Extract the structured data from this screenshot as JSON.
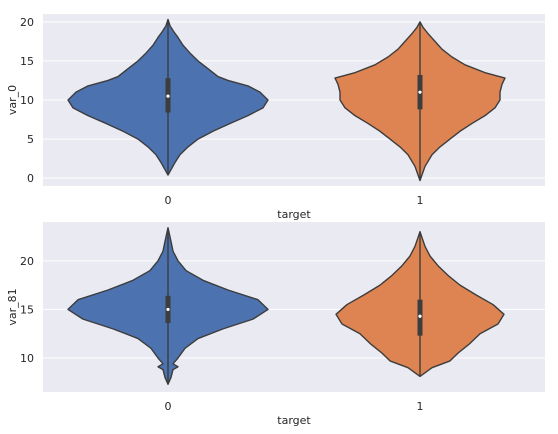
{
  "chart_data": [
    {
      "type": "violin",
      "xlabel": "target",
      "ylabel": "var_0",
      "categories": [
        "0",
        "1"
      ],
      "colors": [
        "#4c72b0",
        "#dd8452"
      ],
      "ylim": [
        -1.0,
        21.0
      ],
      "yticks": [
        0,
        5,
        10,
        15,
        20
      ],
      "grid": true,
      "series": [
        {
          "category": "0",
          "min": 0.4,
          "max": 20.3,
          "q1": 8.4,
          "median": 10.5,
          "q3": 12.8,
          "density": [
            [
              0.4,
              0.0
            ],
            [
              2.0,
              0.07
            ],
            [
              3.0,
              0.12
            ],
            [
              4.0,
              0.2
            ],
            [
              5.0,
              0.3
            ],
            [
              6.0,
              0.45
            ],
            [
              7.0,
              0.62
            ],
            [
              8.0,
              0.8
            ],
            [
              9.0,
              0.95
            ],
            [
              10.0,
              1.0
            ],
            [
              11.0,
              0.92
            ],
            [
              11.8,
              0.8
            ],
            [
              12.5,
              0.6
            ],
            [
              13.0,
              0.5
            ],
            [
              14.0,
              0.4
            ],
            [
              15.0,
              0.3
            ],
            [
              16.0,
              0.22
            ],
            [
              17.0,
              0.15
            ],
            [
              18.0,
              0.1
            ],
            [
              18.7,
              0.06
            ],
            [
              19.5,
              0.02
            ],
            [
              20.3,
              0.0
            ]
          ]
        },
        {
          "category": "1",
          "min": -0.3,
          "max": 20.0,
          "q1": 8.8,
          "median": 11.0,
          "q3": 13.2,
          "density": [
            [
              -0.3,
              0.0
            ],
            [
              1.5,
              0.05
            ],
            [
              3.0,
              0.12
            ],
            [
              4.0,
              0.2
            ],
            [
              5.0,
              0.3
            ],
            [
              6.0,
              0.4
            ],
            [
              7.0,
              0.52
            ],
            [
              8.0,
              0.65
            ],
            [
              9.0,
              0.75
            ],
            [
              10.0,
              0.8
            ],
            [
              11.0,
              0.8
            ],
            [
              12.0,
              0.82
            ],
            [
              12.8,
              0.85
            ],
            [
              13.5,
              0.65
            ],
            [
              14.5,
              0.45
            ],
            [
              15.5,
              0.32
            ],
            [
              16.5,
              0.22
            ],
            [
              17.5,
              0.15
            ],
            [
              18.5,
              0.08
            ],
            [
              19.3,
              0.03
            ],
            [
              20.0,
              0.0
            ]
          ]
        }
      ]
    },
    {
      "type": "violin",
      "xlabel": "target",
      "ylabel": "var_81",
      "categories": [
        "0",
        "1"
      ],
      "colors": [
        "#4c72b0",
        "#dd8452"
      ],
      "ylim": [
        6.5,
        24.0
      ],
      "yticks": [
        10,
        15,
        20
      ],
      "grid": true,
      "series": [
        {
          "category": "0",
          "min": 7.3,
          "max": 23.4,
          "q1": 13.6,
          "median": 15.0,
          "q3": 16.4,
          "density": [
            [
              7.3,
              0.0
            ],
            [
              8.0,
              0.03
            ],
            [
              8.8,
              0.05
            ],
            [
              9.1,
              0.1
            ],
            [
              9.4,
              0.05
            ],
            [
              10.0,
              0.1
            ],
            [
              11.0,
              0.17
            ],
            [
              12.0,
              0.3
            ],
            [
              13.0,
              0.55
            ],
            [
              14.0,
              0.85
            ],
            [
              15.0,
              1.0
            ],
            [
              16.0,
              0.9
            ],
            [
              17.0,
              0.6
            ],
            [
              18.0,
              0.35
            ],
            [
              19.0,
              0.18
            ],
            [
              20.0,
              0.1
            ],
            [
              21.0,
              0.05
            ],
            [
              22.0,
              0.03
            ],
            [
              23.4,
              0.0
            ]
          ]
        },
        {
          "category": "1",
          "min": 8.1,
          "max": 23.0,
          "q1": 12.3,
          "median": 14.3,
          "q3": 16.0,
          "density": [
            [
              8.1,
              0.0
            ],
            [
              9.0,
              0.12
            ],
            [
              9.7,
              0.3
            ],
            [
              10.5,
              0.38
            ],
            [
              11.5,
              0.5
            ],
            [
              12.5,
              0.6
            ],
            [
              13.5,
              0.78
            ],
            [
              14.5,
              0.84
            ],
            [
              15.5,
              0.73
            ],
            [
              16.5,
              0.56
            ],
            [
              17.5,
              0.4
            ],
            [
              18.5,
              0.28
            ],
            [
              19.5,
              0.18
            ],
            [
              20.5,
              0.1
            ],
            [
              21.5,
              0.05
            ],
            [
              23.0,
              0.0
            ]
          ]
        }
      ]
    }
  ]
}
